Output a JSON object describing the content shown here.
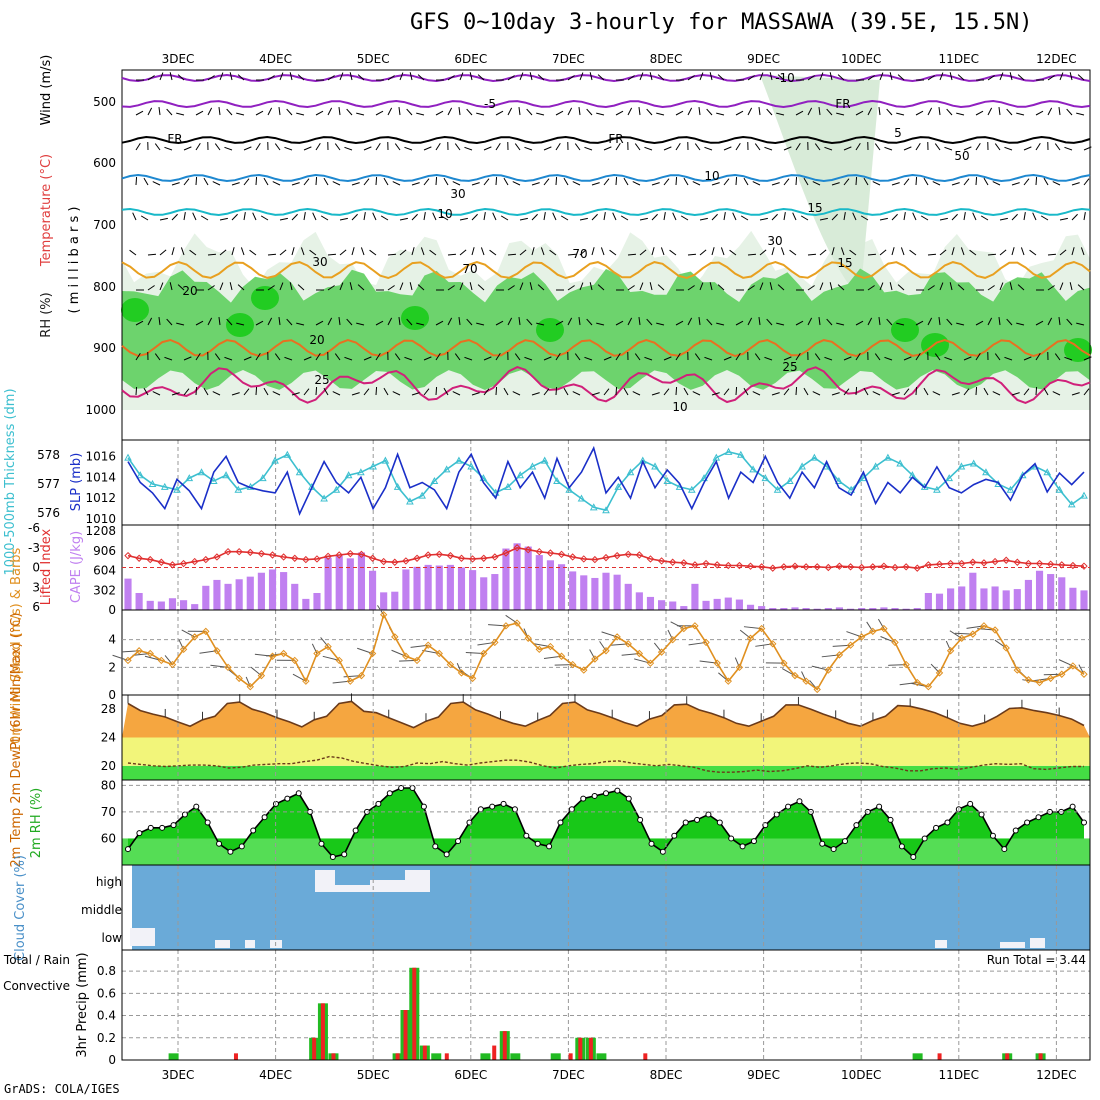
{
  "header": {
    "title": "GFS 0~10day 3-hourly for MASSAWA (39.5E, 15.5N)",
    "credit": "GrADS: COLA/IGES"
  },
  "x_axis": {
    "days": [
      "3DEC",
      "4DEC",
      "5DEC",
      "6DEC",
      "7DEC",
      "8DEC",
      "9DEC",
      "10DEC",
      "11DEC",
      "12DEC"
    ]
  },
  "colors": {
    "rh_green": "#22cc22",
    "rh_light": "#cde6cd",
    "cape_purple": "#c080f0",
    "lifted_red": "#e03030",
    "slp_blue": "#1a2fc8",
    "thick_cyan": "#3cbfcf",
    "wind_orange": "#e09020",
    "cloud_blue": "#6aaad8",
    "precip_green": "#22bb22",
    "precip_red": "#ee2222"
  },
  "chart_data": [
    {
      "type": "area",
      "panel": "upper-air",
      "ylabel_parts": [
        "RH (%)",
        "Temperature (°C)",
        "Wind (m/s)",
        "( m i l l i b a r s )"
      ],
      "yticks": [
        "500",
        "600",
        "700",
        "800",
        "900",
        "1000"
      ],
      "ylim": [
        1000,
        450
      ],
      "contour_labels": [
        "-10",
        "-5",
        "FR",
        "FR",
        "FR",
        "5",
        "10",
        "10",
        "15",
        "15",
        "20",
        "20",
        "25",
        "25",
        "10",
        "30",
        "50",
        "70",
        "30",
        "70",
        "30"
      ],
      "isotherms": [
        {
          "name": "-10",
          "level_hpa": 452
        },
        {
          "name": "-5",
          "level_hpa": 505
        },
        {
          "name": "FR",
          "level_hpa": 562
        },
        {
          "name": "5",
          "level_hpa": 620
        },
        {
          "name": "10",
          "level_hpa": 690
        },
        {
          "name": "15",
          "level_hpa": 790
        },
        {
          "name": "20",
          "level_hpa": 895
        },
        {
          "name": "25",
          "level_hpa": 965
        }
      ]
    },
    {
      "type": "line",
      "panel": "slp-thickness",
      "ylabel_left": "1000-500mb Thickness (dm)",
      "ylabel_right": "SLP (mb)",
      "left_ticks": [
        "576",
        "577",
        "578"
      ],
      "right_ticks": [
        "1010",
        "1012",
        "1014",
        "1016"
      ],
      "series": [
        {
          "name": "SLP (mb)",
          "values": [
            1015.5,
            1013.5,
            1012.5,
            1011,
            1013.8,
            1012.7,
            1011,
            1014.5,
            1016,
            1013.5,
            1013,
            1012.7,
            1012.5,
            1014.5,
            1010.5,
            1013,
            1015.5,
            1013.5,
            1012.5,
            1014,
            1011,
            1013,
            1016.2,
            1013,
            1013.5,
            1012.8,
            1011,
            1014.5,
            1016.2,
            1013.5,
            1012,
            1015.5,
            1013,
            1014.5,
            1012,
            1015.8,
            1013,
            1014.5,
            1016.8,
            1012.5,
            1014,
            1012,
            1015.5,
            1013,
            1014.7,
            1013.4,
            1011,
            1013.5,
            1015.5,
            1012,
            1014.5,
            1013.5,
            1016,
            1013.5,
            1012,
            1014.5,
            1013,
            1015.5,
            1013,
            1012.3,
            1014.5,
            1011.5,
            1013.5,
            1012.5,
            1014,
            1013,
            1015,
            1013,
            1012.5,
            1013.3,
            1013.8,
            1013.5,
            1011.8,
            1014.2,
            1015.3,
            1012.6,
            1014.4,
            1013.3,
            1014.5
          ]
        },
        {
          "name": "1000-500mb Thickness (dm)",
          "values": [
            577.9,
            577.3,
            577,
            576.9,
            576.8,
            577.2,
            577.4,
            577.1,
            577.3,
            576.8,
            576.9,
            577.2,
            577.8,
            578,
            577.4,
            576.9,
            576.5,
            576.8,
            577.3,
            577.4,
            577.6,
            577.8,
            576.9,
            576.4,
            576.6,
            577.1,
            577.5,
            577.8,
            577.6,
            577.2,
            576.7,
            576.9,
            577.3,
            577.6,
            577.8,
            577.1,
            576.8,
            576.5,
            576.2,
            576.1,
            576.9,
            577.4,
            577.8,
            577.6,
            577.1,
            576.9,
            576.8,
            577.2,
            577.9,
            578.1,
            578,
            577.5,
            577.2,
            576.8,
            577.1,
            577.6,
            577.9,
            577.6,
            577.1,
            576.8,
            577.2,
            577.6,
            577.9,
            577.7,
            577.3,
            576.9,
            576.8,
            577.2,
            577.6,
            577.7,
            577.4,
            577,
            576.8,
            577.3,
            577.6,
            577.4,
            576.8,
            576.3,
            576.6
          ]
        }
      ]
    },
    {
      "type": "bar",
      "panel": "cape-lifted",
      "ylabel_left": "Lifted Index",
      "ylabel_right": "CAPE (J/kg)",
      "left_ticks": [
        "-6",
        "-3",
        "0",
        "3",
        "6"
      ],
      "right_ticks": [
        "0",
        "302",
        "604",
        "906",
        "1208"
      ],
      "series": [
        {
          "name": "CAPE (J/kg)",
          "values": [
            480,
            260,
            140,
            130,
            180,
            150,
            90,
            370,
            460,
            400,
            470,
            510,
            570,
            620,
            580,
            400,
            170,
            260,
            800,
            830,
            790,
            880,
            600,
            270,
            280,
            620,
            660,
            690,
            680,
            690,
            650,
            610,
            500,
            550,
            940,
            1020,
            970,
            840,
            760,
            700,
            590,
            530,
            490,
            570,
            540,
            400,
            270,
            200,
            150,
            130,
            60,
            400,
            140,
            170,
            190,
            160,
            80,
            60,
            30,
            30,
            40,
            30,
            20,
            30,
            40,
            20,
            30,
            30,
            40,
            30,
            20,
            30,
            260,
            250,
            330,
            360,
            570,
            330,
            360,
            300,
            320,
            460,
            600,
            550,
            500,
            340,
            300
          ]
        },
        {
          "name": "Lifted Index",
          "values": [
            -1.8,
            -1.4,
            -1.2,
            -0.8,
            -0.4,
            -0.6,
            -0.9,
            -1.2,
            -1.6,
            -2.4,
            -2.4,
            -2.3,
            -2.1,
            -1.9,
            -1.6,
            -1.4,
            -1.2,
            -1.3,
            -1.7,
            -1.9,
            -2.1,
            -2.0,
            -1.4,
            -0.9,
            -0.8,
            -1.0,
            -1.4,
            -1.9,
            -2.0,
            -1.8,
            -1.4,
            -1.3,
            -1.4,
            -1.6,
            -2.2,
            -3.0,
            -2.7,
            -2.4,
            -2.2,
            -2.0,
            -1.6,
            -1.3,
            -1.2,
            -1.5,
            -1.8,
            -2.0,
            -1.9,
            -1.3,
            -1.0,
            -0.8,
            -0.7,
            -0.4,
            -0.6,
            -0.4,
            -0.3,
            -0.3,
            -0.2,
            -0.1,
            0.1,
            -0.1,
            -0.2,
            -0.1,
            -0.1,
            0.0,
            -0.2,
            -0.1,
            0.0,
            -0.1,
            -0.2,
            0.0,
            -0.1,
            0.1,
            -0.4,
            -0.5,
            -0.6,
            -0.6,
            -0.8,
            -0.7,
            -0.9,
            -1.1,
            -0.8,
            -0.6,
            -0.6,
            -0.5,
            -0.4,
            -0.3,
            -0.2
          ]
        }
      ]
    },
    {
      "type": "line",
      "panel": "10m-wind",
      "ylabel": "10m Wind Speed (m/s) & Barbs",
      "yticks": [
        "0",
        "2",
        "4"
      ],
      "ylim": [
        0,
        6
      ],
      "series": [
        {
          "name": "10m Wind Speed (m/s)",
          "values": [
            2.5,
            3.2,
            3.0,
            2.5,
            2.2,
            3.3,
            4.2,
            4.6,
            3.2,
            2.0,
            1.2,
            0.6,
            1.4,
            2.8,
            3.0,
            2.5,
            1.0,
            3.0,
            3.5,
            2.5,
            1.0,
            1.4,
            3.0,
            5.8,
            4.2,
            2.8,
            2.5,
            3.6,
            3.0,
            2.2,
            1.6,
            1.2,
            3.0,
            3.8,
            5.0,
            5.2,
            4.1,
            3.3,
            3.5,
            2.8,
            2.2,
            1.8,
            2.6,
            3.2,
            4.2,
            3.7,
            3.0,
            2.3,
            3.1,
            4.0,
            4.8,
            5.0,
            3.8,
            2.3,
            1.0,
            2.0,
            4.1,
            4.8,
            3.7,
            2.3,
            1.4,
            1.0,
            0.4,
            1.8,
            2.9,
            3.6,
            4.2,
            4.6,
            4.8,
            3.8,
            2.2,
            0.9,
            0.6,
            1.6,
            3.2,
            4.1,
            4.4,
            5.0,
            4.7,
            3.4,
            1.8,
            1.1,
            0.9,
            1.2,
            1.5,
            2.1,
            1.5
          ]
        }
      ]
    },
    {
      "type": "area",
      "panel": "2m-temp",
      "ylabel": "2m Temp 2m DewPt (6hr Min/Max) (°C)",
      "yticks": [
        "20",
        "24",
        "28"
      ],
      "ylim": [
        18,
        30
      ],
      "series": [
        {
          "name": "2m Temp (°C)",
          "values": [
            28.8,
            27.8,
            27.3,
            26.9,
            26.2,
            25.6,
            26.5,
            27.0,
            28.8,
            29.0,
            28.0,
            27.5,
            26.8,
            26.2,
            25.5,
            26.5,
            27.0,
            28.8,
            29.1,
            27.7,
            27.5,
            26.8,
            26.1,
            25.4,
            26.3,
            26.9,
            28.8,
            29.0,
            27.9,
            27.3,
            26.6,
            26.0,
            25.6,
            26.4,
            27.1,
            28.8,
            29.0,
            27.9,
            27.4,
            26.8,
            26.1,
            25.6,
            26.6,
            27.1,
            28.6,
            28.7,
            27.9,
            27.4,
            26.8,
            26.0,
            25.6,
            26.3,
            27.0,
            28.6,
            28.6,
            28.0,
            27.3,
            26.7,
            26.0,
            25.6,
            26.4,
            27.0,
            28.5,
            28.4,
            28.0,
            27.5,
            26.8,
            26.0,
            25.6,
            26.1,
            27.0,
            28.1,
            28.2,
            27.8,
            27.5,
            27.1,
            26.6,
            25.7
          ]
        },
        {
          "name": "2m DewPt (°C)",
          "values": [
            20.4,
            20.2,
            20.0,
            19.9,
            20.0,
            20.1,
            20.1,
            20.0,
            19.7,
            19.8,
            20.1,
            20.2,
            20.3,
            20.3,
            20.6,
            20.8,
            21.3,
            21.1,
            20.6,
            20.3,
            20.0,
            19.8,
            19.9,
            20.4,
            20.3,
            20.6,
            20.3,
            20.1,
            20.4,
            20.6,
            20.8,
            20.8,
            20.5,
            20.0,
            19.7,
            20.0,
            20.2,
            20.3,
            20.6,
            20.7,
            20.4,
            20.2,
            20.0,
            20.2,
            20.0,
            19.8,
            19.3,
            19.1,
            19.1,
            19.2,
            19.4,
            19.2,
            19.3,
            19.6,
            20.0,
            19.8,
            20.0,
            20.3,
            20.4,
            20.3,
            19.9,
            19.7,
            19.3,
            19.3,
            19.6,
            19.7,
            19.5,
            19.8,
            20.1,
            20.3,
            20.2,
            20.3,
            19.6,
            19.5,
            19.7,
            19.9,
            19.9
          ]
        }
      ]
    },
    {
      "type": "area",
      "panel": "2m-rh",
      "ylabel": "2m RH (%)",
      "yticks": [
        "60",
        "70",
        "80"
      ],
      "ylim": [
        50,
        82
      ],
      "series": [
        {
          "name": "2m RH (%)",
          "values": [
            56,
            62,
            64,
            64,
            65,
            69,
            72,
            66,
            58,
            55,
            57,
            63,
            68,
            73,
            75,
            77,
            70,
            58,
            53,
            54,
            63,
            70,
            73,
            77,
            79,
            79,
            72,
            57,
            54,
            59,
            66,
            71,
            72,
            73,
            71,
            61,
            58,
            57,
            66,
            71,
            75,
            76,
            77,
            78,
            75,
            67,
            58,
            55,
            61,
            66,
            67,
            69,
            66,
            60,
            57,
            59,
            65,
            69,
            72,
            74,
            70,
            58,
            56,
            59,
            65,
            70,
            72,
            67,
            57,
            53,
            60,
            64,
            66,
            71,
            73,
            69,
            61,
            56,
            63,
            66,
            68,
            70,
            70,
            72,
            66
          ]
        }
      ]
    },
    {
      "type": "heatmap",
      "panel": "cloud-cover",
      "ylabel": "Cloud Cover (%)",
      "yticks": [
        "high",
        "middle",
        "low"
      ]
    },
    {
      "type": "bar",
      "panel": "precip",
      "ylabel_parts": [
        "3hr Precip (mm)",
        "Total / Rain",
        "Convective"
      ],
      "yticks": [
        "0",
        "0.2",
        "0.4",
        "0.6",
        "0.8"
      ],
      "ylim": [
        0,
        0.9
      ],
      "run_total_label": "Run Total = 3.44",
      "bars": [
        {
          "x": 0.35,
          "total": 0.06,
          "conv": 0.0
        },
        {
          "x": 1.06,
          "total": 0.0,
          "conv": 0.06
        },
        {
          "x": 1.95,
          "total": 0.2,
          "conv": 0.2
        },
        {
          "x": 2.05,
          "total": 0.51,
          "conv": 0.51
        },
        {
          "x": 2.17,
          "total": 0.06,
          "conv": 0.06
        },
        {
          "x": 2.9,
          "total": 0.06,
          "conv": 0.06
        },
        {
          "x": 2.99,
          "total": 0.45,
          "conv": 0.45
        },
        {
          "x": 3.09,
          "total": 0.83,
          "conv": 0.83
        },
        {
          "x": 3.21,
          "total": 0.13,
          "conv": 0.13
        },
        {
          "x": 3.34,
          "total": 0.06,
          "conv": 0.0
        },
        {
          "x": 3.46,
          "total": 0.0,
          "conv": 0.06
        },
        {
          "x": 3.9,
          "total": 0.06,
          "conv": 0.0
        },
        {
          "x": 4.0,
          "total": 0.0,
          "conv": 0.13
        },
        {
          "x": 4.12,
          "total": 0.26,
          "conv": 0.26
        },
        {
          "x": 4.24,
          "total": 0.06,
          "conv": 0.0
        },
        {
          "x": 4.7,
          "total": 0.06,
          "conv": 0.0
        },
        {
          "x": 4.87,
          "total": 0.0,
          "conv": 0.06
        },
        {
          "x": 4.98,
          "total": 0.2,
          "conv": 0.2
        },
        {
          "x": 5.1,
          "total": 0.2,
          "conv": 0.2
        },
        {
          "x": 5.22,
          "total": 0.06,
          "conv": 0.0
        },
        {
          "x": 5.72,
          "total": 0.0,
          "conv": 0.06
        },
        {
          "x": 8.82,
          "total": 0.06,
          "conv": 0.0
        },
        {
          "x": 9.07,
          "total": 0.0,
          "conv": 0.06
        },
        {
          "x": 9.84,
          "total": 0.06,
          "conv": 0.06
        },
        {
          "x": 10.22,
          "total": 0.06,
          "conv": 0.06
        }
      ]
    }
  ]
}
